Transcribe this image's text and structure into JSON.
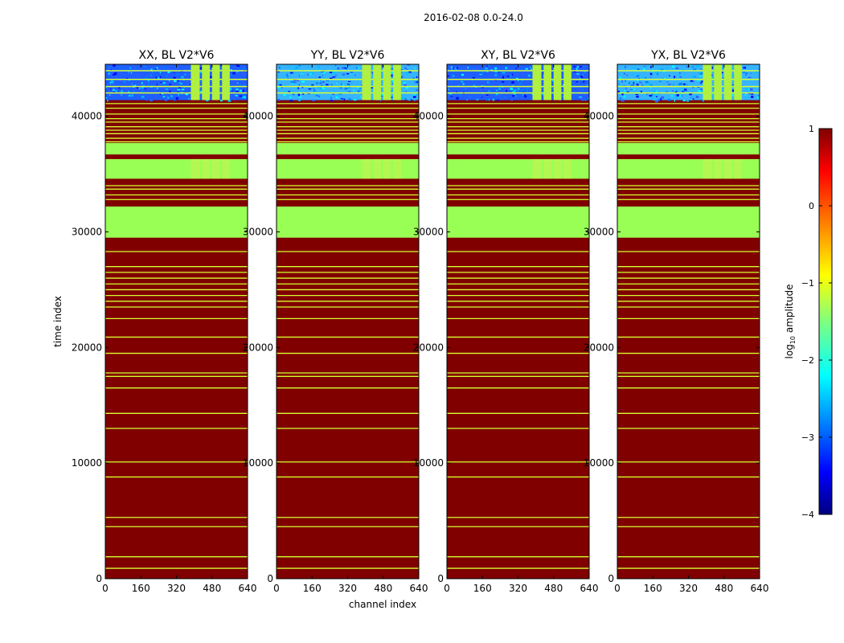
{
  "chart_data": {
    "type": "heatmap",
    "suptitle": "2016-02-08 0.0-24.0",
    "xlabel": "channel index",
    "ylabel": "time index",
    "xlim": [
      0,
      640
    ],
    "ylim": [
      0,
      44500
    ],
    "x_ticks": [
      0,
      160,
      320,
      480,
      640
    ],
    "y_ticks": [
      0,
      10000,
      20000,
      30000,
      40000
    ],
    "colorbar": {
      "label": "log10 amplitude",
      "label_base": "log",
      "label_sub": "10",
      "label_rest": " amplitude",
      "range": [
        -4,
        1
      ],
      "ticks": [
        1,
        0,
        -1,
        -2,
        -3,
        -4
      ],
      "colormap": "jet"
    },
    "panels": [
      {
        "title": "XX, BL V2*V6",
        "low_band_color": "#1f5fff"
      },
      {
        "title": "YY, BL V2*V6",
        "low_band_color": "#36b4ff"
      },
      {
        "title": "XY, BL V2*V6",
        "low_band_color": "#1f5fff"
      },
      {
        "title": "YX, BL V2*V6",
        "low_band_color": "#36b4ff"
      }
    ],
    "background_color": "#800000",
    "flag_color": "#99ff55",
    "line_color": "#d6ff33",
    "flagged_blocks": [
      [
        29500,
        32200
      ],
      [
        34600,
        36300
      ],
      [
        36700,
        37700
      ]
    ],
    "flag_lines_time": [
      900,
      1900,
      4500,
      5300,
      8800,
      10100,
      13000,
      14300,
      16500,
      17500,
      17800,
      19500,
      20900,
      22500,
      23500,
      24000,
      24500,
      25000,
      25500,
      26000,
      26500,
      27000,
      28300,
      32800,
      33200,
      33700,
      34000,
      37800,
      38100,
      38500,
      38800,
      39100,
      39500,
      39800,
      40200,
      40700,
      41100
    ],
    "low_amplitude_band": [
      41400,
      44500
    ],
    "flagged_channel_ranges": [
      [
        385,
        425
      ],
      [
        435,
        470
      ],
      [
        480,
        515
      ],
      [
        525,
        560
      ]
    ]
  }
}
